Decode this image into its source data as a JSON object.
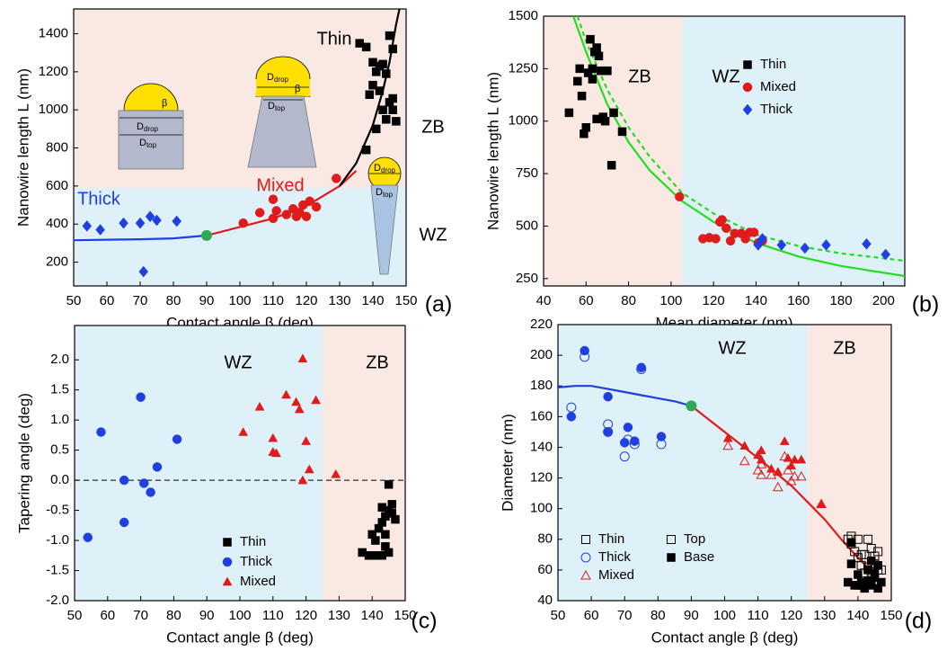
{
  "chart_data": [
    {
      "type": "scatter",
      "panel_label": "(a)",
      "xlabel": "Contact angle β (deg)",
      "ylabel": "Nanowire length L (nm)",
      "xlim": [
        50,
        150
      ],
      "ylim": [
        75,
        1530
      ],
      "xticks": [
        50,
        60,
        70,
        80,
        90,
        100,
        110,
        120,
        130,
        140,
        150
      ],
      "yticks": [
        200,
        400,
        600,
        800,
        1000,
        1200,
        1400
      ],
      "regions": [
        {
          "axis": "y",
          "range": [
            75,
            590
          ],
          "color": "#dff1f8"
        },
        {
          "axis": "y",
          "range": [
            590,
            1530
          ],
          "color": "#f9e9e2"
        }
      ],
      "annotations": [
        {
          "text": "Thin",
          "color": "#000000"
        },
        {
          "text": "Mixed",
          "color": "#e01b1b"
        },
        {
          "text": "Thick",
          "color": "#1f3fe0"
        },
        {
          "text": "ZB",
          "color": "#000000"
        },
        {
          "text": "WZ",
          "color": "#000000"
        }
      ],
      "insets": {
        "d": "D",
        "drop": "drop",
        "top": "top",
        "beta": "β"
      },
      "curves": [
        {
          "color": "#1f3fe0",
          "x": [
            50,
            60,
            70,
            80,
            90
          ],
          "values": [
            315,
            318,
            320,
            325,
            340
          ]
        },
        {
          "color": "#e01b1b",
          "x": [
            90,
            100,
            110,
            120,
            130,
            135
          ],
          "values": [
            340,
            385,
            430,
            495,
            600,
            680
          ]
        },
        {
          "color": "#000000",
          "x": [
            130,
            135,
            140,
            143,
            145,
            147,
            148
          ],
          "values": [
            600,
            720,
            920,
            1100,
            1250,
            1450,
            1530
          ]
        }
      ],
      "highlight": {
        "x": 90,
        "y": 340,
        "color": "#2eaa55"
      },
      "series": [
        {
          "name": "Thick",
          "color": "#1f3fe0",
          "marker": "diamond",
          "x": [
            54,
            58,
            65,
            70,
            73,
            75,
            81,
            71
          ],
          "values": [
            390,
            370,
            405,
            405,
            440,
            420,
            415,
            150
          ]
        },
        {
          "name": "Mixed",
          "color": "#e01b1b",
          "marker": "circle",
          "x": [
            101,
            106,
            110,
            111,
            110,
            114,
            116,
            118,
            119,
            120,
            121,
            123,
            117,
            129
          ],
          "values": [
            405,
            460,
            530,
            470,
            430,
            450,
            480,
            460,
            500,
            440,
            520,
            490,
            440,
            640
          ]
        },
        {
          "name": "Thin",
          "color": "#000000",
          "marker": "square",
          "x": [
            136,
            138,
            140,
            141,
            142,
            143,
            144,
            145,
            146,
            142,
            143,
            144,
            145,
            146,
            147,
            140,
            138,
            139,
            141,
            146
          ],
          "values": [
            1350,
            1330,
            1250,
            1200,
            1230,
            1240,
            1190,
            1390,
            1320,
            1100,
            1000,
            950,
            1040,
            1060,
            940,
            1130,
            790,
            1080,
            900,
            1000
          ]
        }
      ]
    },
    {
      "type": "scatter",
      "panel_label": "(b)",
      "xlabel": "Mean diameter (nm)",
      "ylabel": "Nanowire length L (nm)",
      "xlim": [
        40,
        210
      ],
      "ylim": [
        215,
        1500
      ],
      "xticks": [
        40,
        60,
        80,
        100,
        120,
        140,
        160,
        180,
        200
      ],
      "yticks": [
        250,
        500,
        750,
        1000,
        1250,
        1500
      ],
      "regions": [
        {
          "axis": "x",
          "range": [
            40,
            105
          ],
          "color": "#f9e9e2"
        },
        {
          "axis": "x",
          "range": [
            105,
            210
          ],
          "color": "#dff1f8"
        }
      ],
      "annotations": [
        {
          "text": "ZB",
          "color": "#000000"
        },
        {
          "text": "WZ",
          "color": "#000000"
        }
      ],
      "curves": [
        {
          "color": "#22dd22",
          "x": [
            54,
            60,
            70,
            80,
            90,
            105,
            120,
            140,
            160,
            180,
            210
          ],
          "values": [
            1500,
            1330,
            1080,
            900,
            765,
            620,
            520,
            420,
            355,
            310,
            262
          ]
        },
        {
          "color": "#22dd22",
          "dashed": true,
          "x": [
            56,
            60,
            70,
            80,
            90,
            105,
            120,
            140,
            160,
            180,
            210
          ],
          "values": [
            1500,
            1380,
            1150,
            970,
            830,
            660,
            560,
            460,
            405,
            370,
            335
          ]
        }
      ],
      "series": [
        {
          "name": "Thin",
          "color": "#000000",
          "marker": "square",
          "x": [
            52,
            56,
            57,
            58,
            59,
            60,
            61,
            62,
            63,
            64,
            65,
            65,
            66,
            67,
            68,
            69,
            70,
            72,
            73,
            77,
            63
          ],
          "values": [
            1040,
            1190,
            1250,
            1120,
            940,
            970,
            1230,
            1390,
            1200,
            1330,
            1010,
            1350,
            1310,
            1240,
            1020,
            1000,
            1240,
            790,
            1040,
            950,
            1250
          ]
        },
        {
          "name": "Mixed",
          "color": "#e01b1b",
          "marker": "circle",
          "x": [
            104,
            115,
            118,
            121,
            123,
            124,
            126,
            128,
            130,
            133,
            135,
            137,
            139,
            141,
            143
          ],
          "values": [
            640,
            440,
            445,
            440,
            520,
            530,
            490,
            430,
            465,
            465,
            440,
            470,
            470,
            420,
            430
          ]
        },
        {
          "name": "Thick",
          "color": "#1f3fe0",
          "marker": "diamond",
          "x": [
            141,
            143,
            152,
            163,
            173,
            192,
            201
          ],
          "values": [
            410,
            440,
            410,
            395,
            410,
            415,
            365
          ]
        }
      ]
    },
    {
      "type": "scatter",
      "panel_label": "(c)",
      "xlabel": "Contact angle β (deg)",
      "ylabel": "Tapering angle (deg)",
      "xlim": [
        50,
        150
      ],
      "ylim": [
        -2,
        2.57
      ],
      "xticks": [
        50,
        60,
        70,
        80,
        90,
        100,
        110,
        120,
        130,
        140,
        150
      ],
      "yticks": [
        {
          "value": -2,
          "label": "-2.0"
        },
        -1.5,
        {
          "value": -1,
          "label": "-1.0"
        },
        -0.5,
        {
          "value": 0,
          "label": "0.0"
        },
        0.5,
        {
          "value": 1,
          "label": "1.0"
        },
        1.5,
        {
          "value": 2,
          "label": "2.0"
        }
      ],
      "regions": [
        {
          "axis": "x",
          "range": [
            50,
            125
          ],
          "color": "#dff1f8"
        },
        {
          "axis": "x",
          "range": [
            125,
            150
          ],
          "color": "#f9e9e2"
        }
      ],
      "annotations": [
        {
          "text": "WZ",
          "color": "#000000"
        },
        {
          "text": "ZB",
          "color": "#000000"
        }
      ],
      "hline": 0,
      "series": [
        {
          "name": "Thin",
          "color": "#000000",
          "marker": "square",
          "x": [
            137,
            139,
            140,
            141,
            141,
            142,
            143,
            143,
            144,
            144,
            145,
            145,
            146,
            146,
            147,
            145,
            143,
            144
          ],
          "values": [
            -1.2,
            -1.25,
            -0.9,
            -1.0,
            -1.25,
            -0.8,
            -1.25,
            -0.7,
            -0.6,
            -0.9,
            -0.5,
            -1.2,
            -0.55,
            -0.4,
            -0.65,
            -0.07,
            -0.45,
            -1.1
          ]
        },
        {
          "name": "Thick",
          "color": "#1f3fe0",
          "marker": "circle",
          "x": [
            54,
            58,
            65,
            65,
            70,
            71,
            73,
            75,
            81
          ],
          "values": [
            -0.95,
            0.8,
            0.0,
            -0.7,
            1.38,
            -0.05,
            -0.2,
            0.22,
            0.68
          ]
        },
        {
          "name": "Mixed",
          "color": "#e01b1b",
          "marker": "triangle",
          "x": [
            101,
            106,
            110,
            110,
            111,
            114,
            117,
            118,
            119,
            119,
            120,
            121,
            123,
            129
          ],
          "values": [
            0.8,
            1.22,
            0.7,
            0.47,
            0.45,
            1.42,
            1.3,
            1.18,
            0.0,
            2.02,
            0.65,
            0.18,
            1.33,
            0.1
          ]
        }
      ]
    },
    {
      "type": "scatter",
      "panel_label": "(d)",
      "xlabel": "Contact angle β (deg)",
      "ylabel": "Diameter (nm)",
      "xlim": [
        50,
        150
      ],
      "ylim": [
        40,
        220
      ],
      "xticks": [
        50,
        60,
        70,
        80,
        90,
        100,
        110,
        120,
        130,
        140,
        150
      ],
      "yticks": [
        40,
        60,
        80,
        100,
        120,
        140,
        160,
        180,
        200,
        220
      ],
      "regions": [
        {
          "axis": "x",
          "range": [
            50,
            125
          ],
          "color": "#dff1f8"
        },
        {
          "axis": "x",
          "range": [
            125,
            150
          ],
          "color": "#f9e9e2"
        }
      ],
      "annotations": [
        {
          "text": "WZ",
          "color": "#000000"
        },
        {
          "text": "ZB",
          "color": "#000000"
        }
      ],
      "curves": [
        {
          "color": "#1f3fe0",
          "x": [
            50,
            55,
            60,
            65,
            70,
            75,
            80,
            85,
            90
          ],
          "values": [
            179,
            180,
            180,
            178,
            176,
            174,
            172,
            170,
            167
          ]
        },
        {
          "color": "#e01b1b",
          "x": [
            90,
            100,
            110,
            120,
            125,
            130,
            135,
            140,
            145,
            148
          ],
          "values": [
            167,
            150,
            133,
            115,
            104,
            93,
            80,
            68,
            57,
            50
          ]
        }
      ],
      "highlight": {
        "x": 90,
        "y": 167,
        "color": "#2eaa55"
      },
      "fill_legend": [
        "Top",
        "Base"
      ],
      "series": [
        {
          "name": "Thin",
          "color": "#000000",
          "marker": "square",
          "x": [
            137,
            138,
            139,
            140,
            140,
            141,
            142,
            142,
            143,
            143,
            144,
            144,
            145,
            145,
            146,
            146,
            147,
            138,
            141
          ],
          "top": [
            80,
            77,
            72,
            68,
            80,
            63,
            70,
            58,
            80,
            62,
            74,
            57,
            69,
            64,
            60,
            72,
            60,
            82,
            70
          ],
          "base": [
            52,
            64,
            50,
            57,
            50,
            52,
            48,
            51,
            53,
            60,
            66,
            50,
            58,
            55,
            48,
            63,
            52,
            78,
            50
          ]
        },
        {
          "name": "Thick",
          "color": "#1f3fe0",
          "marker": "circle",
          "x": [
            54,
            58,
            65,
            65,
            70,
            71,
            73,
            75,
            81
          ],
          "top": [
            166,
            199,
            155,
            150,
            134,
            145,
            142,
            191,
            142
          ],
          "base": [
            160,
            203,
            173,
            150,
            143,
            153,
            144,
            192,
            147
          ]
        },
        {
          "name": "Mixed",
          "color": "#e01b1b",
          "marker": "triangle",
          "x": [
            101,
            106,
            110,
            111,
            111,
            114,
            116,
            118,
            119,
            120,
            121,
            123,
            129
          ],
          "top": [
            141,
            131,
            125,
            122,
            129,
            122,
            114,
            134,
            125,
            118,
            121,
            121,
            103
          ],
          "base": [
            146,
            141,
            135,
            138,
            132,
            126,
            124,
            144,
            133,
            128,
            132,
            132,
            103
          ]
        }
      ]
    }
  ]
}
